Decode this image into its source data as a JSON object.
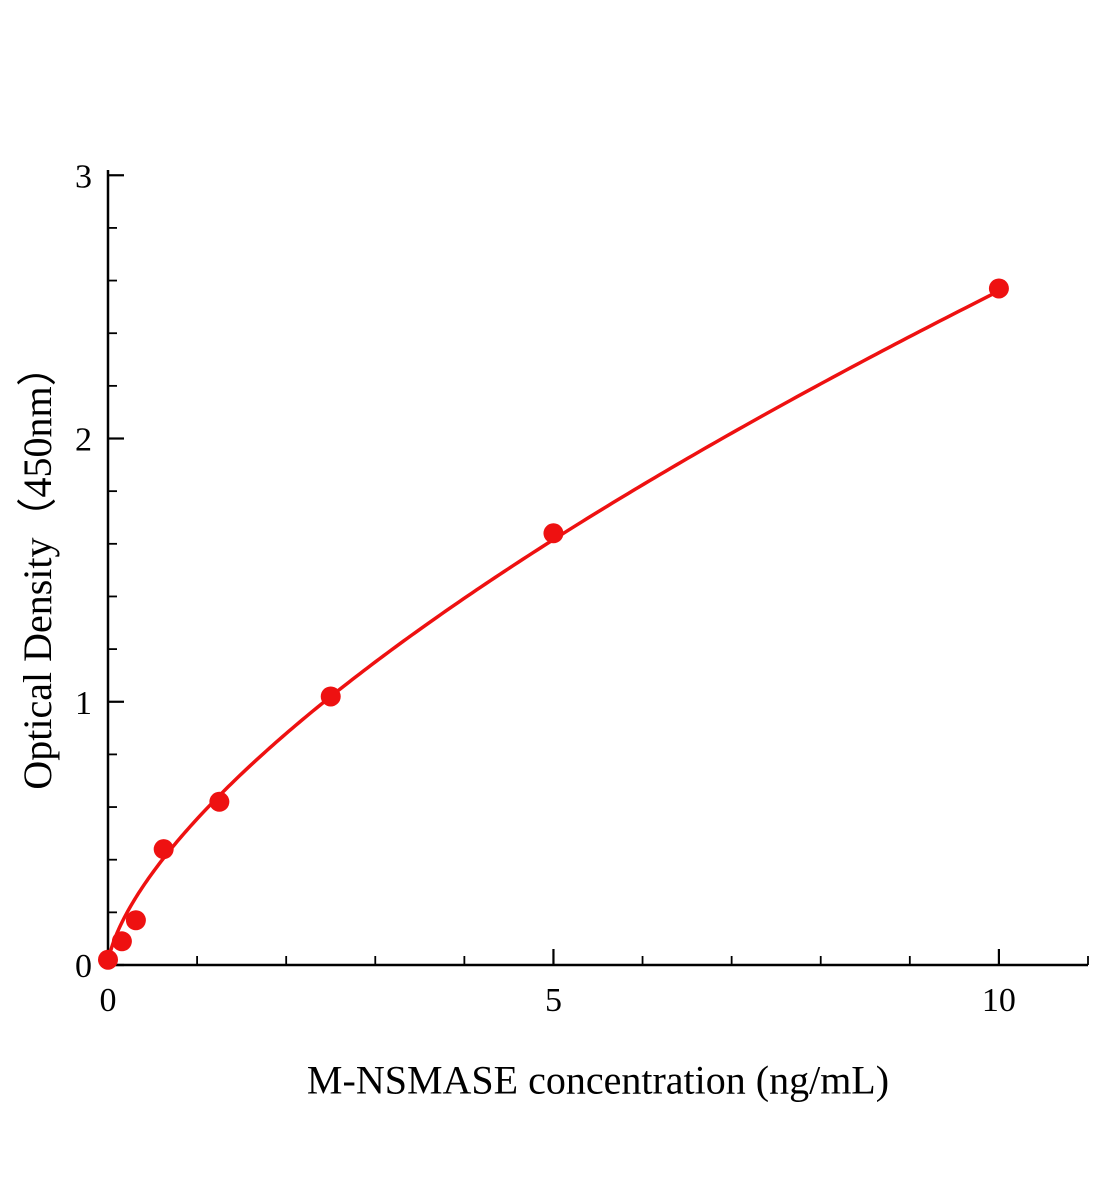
{
  "page": {
    "background_color": "#ffffff",
    "text_color": "#000000"
  },
  "chart_data": {
    "type": "scatter",
    "title": "",
    "xlabel": "M-NSMASE concentration (ng/mL)",
    "ylabel": "Optical Density（450nm）",
    "x": [
      0,
      0.156,
      0.313,
      0.625,
      1.25,
      2.5,
      5,
      10
    ],
    "y": [
      0.02,
      0.09,
      0.17,
      0.44,
      0.62,
      1.02,
      1.64,
      2.57
    ],
    "xlim": [
      0,
      11
    ],
    "ylim": [
      0,
      3.02
    ],
    "x_major_ticks": [
      0,
      5,
      10
    ],
    "x_minor_ticks": [
      1,
      2,
      3,
      4,
      6,
      7,
      8,
      9,
      11
    ],
    "y_major_ticks": [
      0,
      1,
      2,
      3
    ],
    "y_minor_ticks": [
      0.2,
      0.4,
      0.6,
      0.8,
      1.2,
      1.4,
      1.6,
      1.8,
      2.2,
      2.4,
      2.6,
      2.8
    ],
    "marker_color": "#ee1111",
    "line_color": "#ee1111",
    "axis_color": "#000000",
    "fit": {
      "type": "power",
      "a": 0.555,
      "b": 0.664,
      "x_start": 0,
      "x_end": 10
    },
    "grid": false,
    "legend": null
  }
}
